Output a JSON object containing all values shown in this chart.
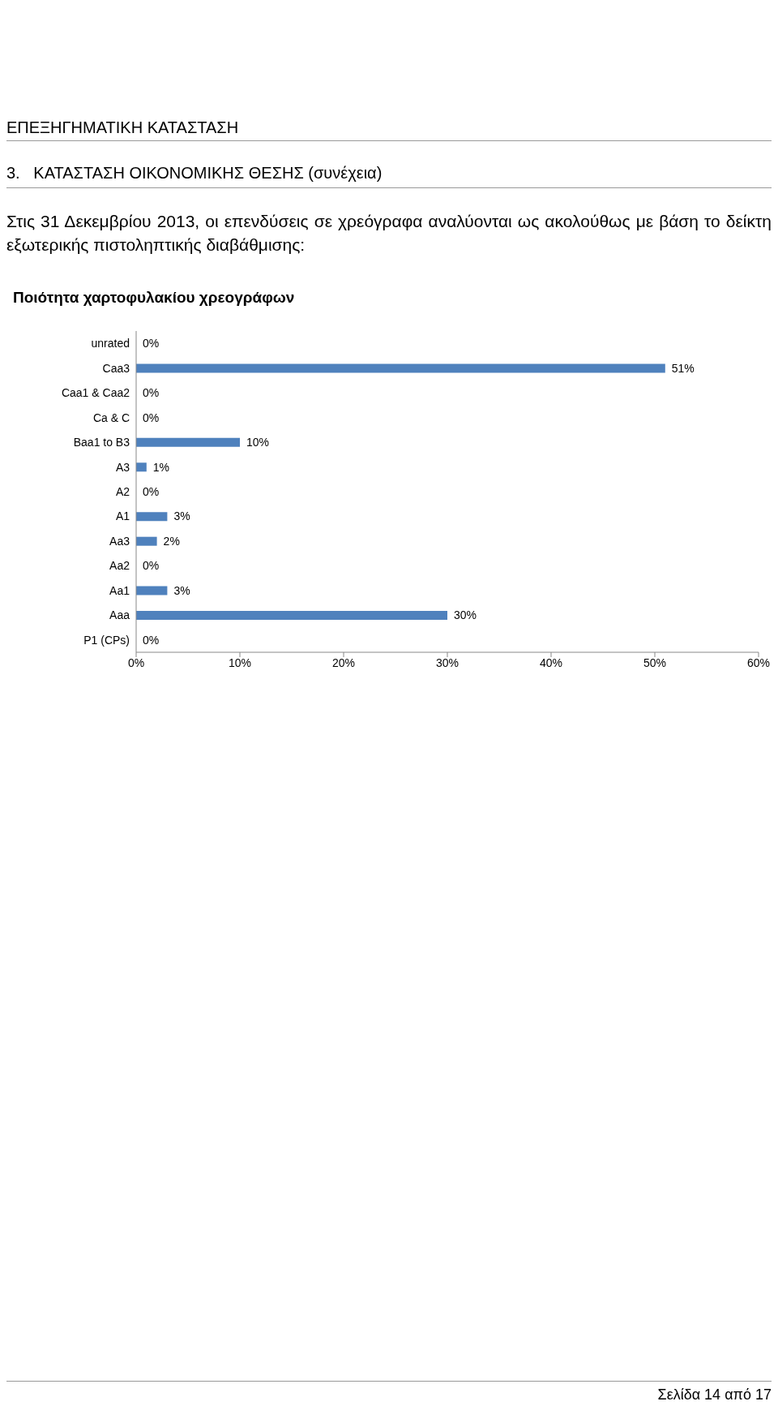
{
  "chart_data": {
    "type": "bar",
    "orientation": "horizontal",
    "title": "Ποιότητα χαρτοφυλακίου χρεογράφων",
    "annotations": [
      "ΕΠΕΞΗΓΗΜΑΤΙΚΗ ΚΑΤΑΣΤΑΣΗ",
      "3.   ΚΑΤΑΣΤΑΣΗ ΟΙΚΟΝΟΜΙΚΗΣ ΘΕΣΗΣ (συνέχεια)",
      "Στις 31 Δεκεμβρίου 2013, οι επενδύσεις σε χρεόγραφα αναλύονται ως ακολούθως με βάση το δείκτη εξωτερικής πιστοληπτικής διαβάθμισης:",
      "Σελίδα 14 από 17"
    ],
    "categories": [
      "unrated",
      "Caa3",
      "Caa1 & Caa2",
      "Ca & C",
      "Baa1 to B3",
      "A3",
      "A2",
      "A1",
      "Aa3",
      "Aa2",
      "Aa1",
      "Aaa",
      "P1 (CPs)"
    ],
    "values": [
      0,
      51,
      0,
      0,
      10,
      1,
      0,
      3,
      2,
      0,
      3,
      30,
      0
    ],
    "value_labels": [
      "0%",
      "51%",
      "0%",
      "0%",
      "10%",
      "1%",
      "0%",
      "3%",
      "2%",
      "0%",
      "3%",
      "30%",
      "0%"
    ],
    "color": "#4f81bd",
    "xlim": [
      0,
      60
    ],
    "xticks": [
      {
        "value": 0,
        "label": "0%"
      },
      {
        "value": 10,
        "label": "10%"
      },
      {
        "value": 20,
        "label": "20%"
      },
      {
        "value": 30,
        "label": "30%"
      },
      {
        "value": 40,
        "label": "40%"
      },
      {
        "value": 50,
        "label": "50%"
      },
      {
        "value": 60,
        "label": "60%"
      }
    ],
    "grid": false,
    "legend": false
  }
}
